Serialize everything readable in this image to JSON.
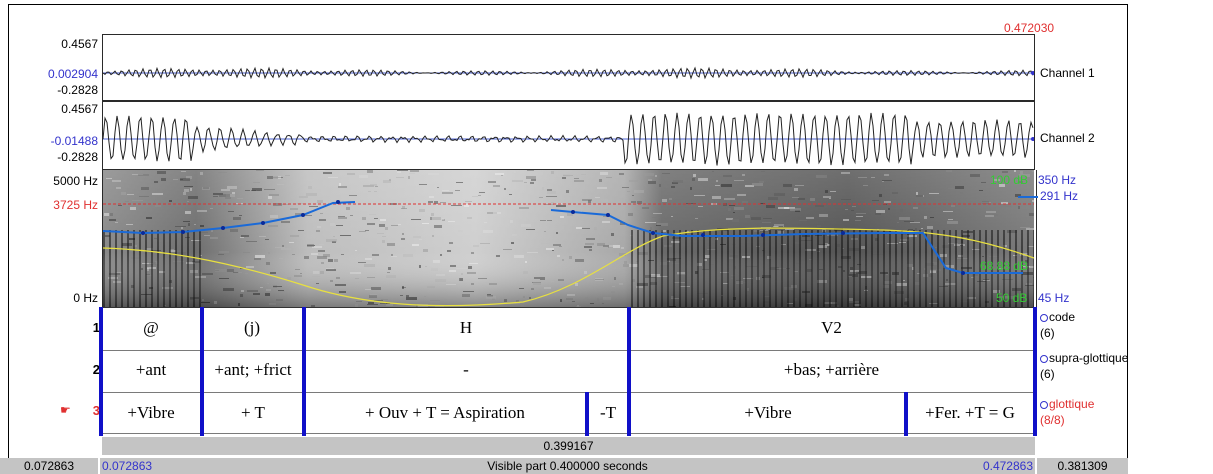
{
  "top_right_time": "0.472030",
  "channel1": {
    "max": "0.4567",
    "cursor": "0.002904",
    "min": "-0.2828",
    "name": "Channel 1"
  },
  "channel2": {
    "max": "0.4567",
    "cursor": "-0.01488",
    "min": "-0.2828",
    "name": "Channel 2"
  },
  "spectrogram": {
    "top_freq": "5000 Hz",
    "cursor_freq": "3725 Hz",
    "bottom_freq": "0 Hz",
    "intensity_top": "100 dB",
    "intensity_val": "68.88 dB",
    "intensity_bottom": "50 dB",
    "pitch_top": "350 Hz",
    "pitch_val": "291 Hz",
    "pitch_bottom": "45 Hz"
  },
  "tiers": [
    {
      "number": "1",
      "name": "code",
      "count": "(6)",
      "intervals": [
        "@",
        "(j)",
        "H",
        "V2"
      ]
    },
    {
      "number": "2",
      "name": "supra-glottique",
      "count": "(6)",
      "intervals": [
        "+ant",
        "+ant; +frict",
        "-",
        "+bas; +arrière"
      ]
    },
    {
      "number": "3",
      "name": "glottique",
      "count": "(8/8)",
      "intervals": [
        "+Vibre",
        "+ T",
        "+ Ouv + T = Aspiration",
        "-T",
        "+Vibre",
        "+Fer. +T = G"
      ]
    }
  ],
  "tier3_pointer": "☛",
  "selection_duration": "0.399167",
  "bottom": {
    "left_outside": "0.072863",
    "window_start": "0.072863",
    "visible": "Visible part 0.400000 seconds",
    "window_end": "0.472863",
    "right_outside": "0.381309"
  }
}
